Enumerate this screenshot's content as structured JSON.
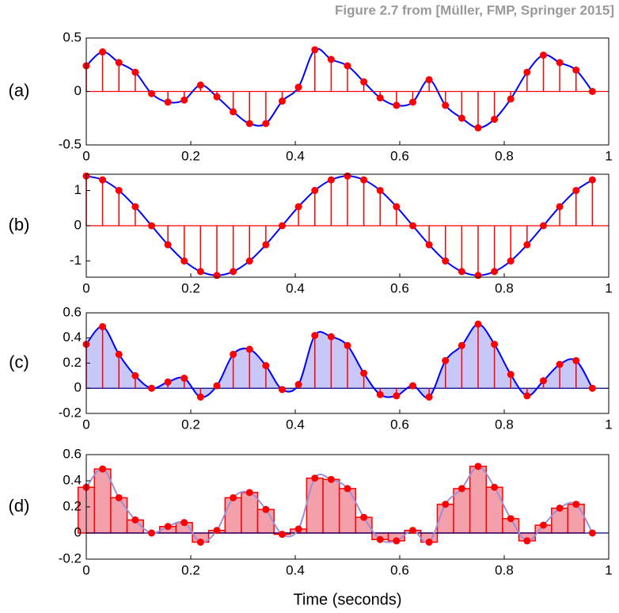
{
  "title": "Figure 2.7 from [Müller, FMP, Springer 2015]",
  "xlabel": "Time (seconds)",
  "chart_data": [
    {
      "type": "stem",
      "label": "(a)",
      "x": [
        0,
        0.03125,
        0.0625,
        0.09375,
        0.125,
        0.15625,
        0.1875,
        0.21875,
        0.25,
        0.28125,
        0.3125,
        0.34375,
        0.375,
        0.40625,
        0.4375,
        0.46875,
        0.5,
        0.53125,
        0.5625,
        0.59375,
        0.625,
        0.65625,
        0.6875,
        0.71875,
        0.75,
        0.78125,
        0.8125,
        0.84375,
        0.875,
        0.90625,
        0.9375,
        0.96875
      ],
      "values": [
        0.24,
        0.37,
        0.27,
        0.18,
        -0.02,
        -0.1,
        -0.08,
        0.06,
        -0.05,
        -0.19,
        -0.3,
        -0.3,
        -0.09,
        0.04,
        0.39,
        0.3,
        0.24,
        0.09,
        -0.06,
        -0.13,
        -0.1,
        0.11,
        -0.13,
        -0.25,
        -0.34,
        -0.26,
        -0.07,
        0.18,
        0.34,
        0.27,
        0.2,
        0
      ],
      "xlim": [
        0,
        1
      ],
      "ylim": [
        -0.5,
        0.5
      ],
      "xticks": [
        0,
        0.2,
        0.4,
        0.6,
        0.8,
        1
      ],
      "yticks": [
        -0.5,
        0,
        0.5
      ],
      "color": "#ff0000",
      "curve_color": "#0000ff"
    },
    {
      "type": "stem",
      "label": "(b)",
      "x": [
        0,
        0.03125,
        0.0625,
        0.09375,
        0.125,
        0.15625,
        0.1875,
        0.21875,
        0.25,
        0.28125,
        0.3125,
        0.34375,
        0.375,
        0.40625,
        0.4375,
        0.46875,
        0.5,
        0.53125,
        0.5625,
        0.59375,
        0.625,
        0.65625,
        0.6875,
        0.71875,
        0.75,
        0.78125,
        0.8125,
        0.84375,
        0.875,
        0.90625,
        0.9375,
        0.96875
      ],
      "values": [
        1.41,
        1.3,
        1,
        0.54,
        0,
        -0.54,
        -1,
        -1.3,
        -1.41,
        -1.3,
        -1,
        -0.54,
        0,
        0.54,
        1,
        1.3,
        1.41,
        1.3,
        1,
        0.54,
        0,
        -0.54,
        -1,
        -1.3,
        -1.41,
        -1.3,
        -1,
        -0.54,
        0,
        0.54,
        1,
        1.3
      ],
      "xlim": [
        0,
        1
      ],
      "ylim": [
        -1.46,
        1.46
      ],
      "xticks": [
        0,
        0.2,
        0.4,
        0.6,
        0.8,
        1
      ],
      "yticks": [
        -1,
        0,
        1
      ],
      "color": "#ff0000",
      "curve_color": "#0000ff"
    },
    {
      "type": "area",
      "label": "(c)",
      "x": [
        0,
        0.03125,
        0.0625,
        0.09375,
        0.125,
        0.15625,
        0.1875,
        0.21875,
        0.25,
        0.28125,
        0.3125,
        0.34375,
        0.375,
        0.40625,
        0.4375,
        0.46875,
        0.5,
        0.53125,
        0.5625,
        0.59375,
        0.625,
        0.65625,
        0.6875,
        0.71875,
        0.75,
        0.78125,
        0.8125,
        0.84375,
        0.875,
        0.90625,
        0.9375,
        0.96875
      ],
      "values": [
        0.35,
        0.49,
        0.27,
        0.1,
        0,
        0.05,
        0.08,
        -0.07,
        0.02,
        0.27,
        0.31,
        0.18,
        -0.01,
        0.03,
        0.42,
        0.41,
        0.34,
        0.12,
        -0.05,
        -0.06,
        0.02,
        -0.07,
        0.22,
        0.34,
        0.51,
        0.35,
        0.11,
        -0.06,
        0.06,
        0.19,
        0.22,
        0
      ],
      "xlim": [
        0,
        1
      ],
      "ylim": [
        -0.2,
        0.6
      ],
      "xticks": [
        0,
        0.2,
        0.4,
        0.6,
        0.8,
        1
      ],
      "yticks": [
        -0.2,
        0,
        0.2,
        0.4,
        0.6
      ],
      "color": "#ff0000",
      "curve_color": "#0000ff",
      "fill": "#c8c8f8"
    },
    {
      "type": "bar",
      "label": "(d)",
      "x": [
        0,
        0.03125,
        0.0625,
        0.09375,
        0.125,
        0.15625,
        0.1875,
        0.21875,
        0.25,
        0.28125,
        0.3125,
        0.34375,
        0.375,
        0.40625,
        0.4375,
        0.46875,
        0.5,
        0.53125,
        0.5625,
        0.59375,
        0.625,
        0.65625,
        0.6875,
        0.71875,
        0.75,
        0.78125,
        0.8125,
        0.84375,
        0.875,
        0.90625,
        0.9375,
        0.96875
      ],
      "values": [
        0.35,
        0.49,
        0.27,
        0.1,
        0,
        0.05,
        0.08,
        -0.07,
        0.02,
        0.27,
        0.31,
        0.18,
        -0.01,
        0.03,
        0.42,
        0.41,
        0.34,
        0.12,
        -0.05,
        -0.06,
        0.02,
        -0.07,
        0.22,
        0.34,
        0.51,
        0.35,
        0.11,
        -0.06,
        0.06,
        0.19,
        0.22,
        0
      ],
      "xlim": [
        0,
        1
      ],
      "ylim": [
        -0.2,
        0.6
      ],
      "xticks": [
        0,
        0.2,
        0.4,
        0.6,
        0.8,
        1
      ],
      "yticks": [
        -0.2,
        0,
        0.2,
        0.4,
        0.6
      ],
      "color": "#ff0000",
      "curve_color": "#0000ff",
      "fill": "#f4a0aa"
    }
  ]
}
